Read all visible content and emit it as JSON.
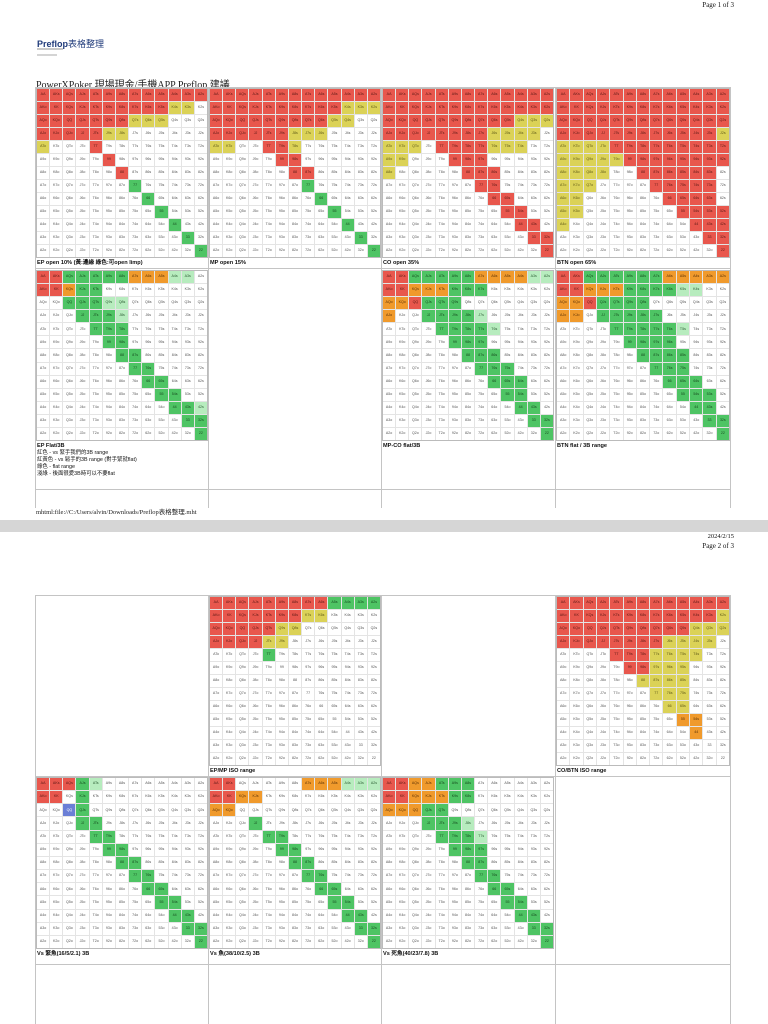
{
  "page1": {
    "pager": "Page 1 of 3",
    "brand": {
      "name": "Preflop",
      "name_suffix": "表格整理"
    },
    "heading": "PowerXPoker 現場現金/手機APP Preflop 建議",
    "captions": {
      "ep_open": "EP open 10% (黃:邊緣 綠色:可open limp)",
      "mp_open": "MP open 15%",
      "co_open": "CO open 35%",
      "btn_open": "BTN open 65%",
      "ep_flat": "EP Flat/3B",
      "mp_co_flat": "MP-CO flat/3B",
      "btn_flat": "BTN flat / 3B range"
    },
    "legend_lines": [
      "紅色 - vs 緊手我們的3B range",
      "紅黃色 - vs 鬆手的3B range (對手緊就flat)",
      "綠色 - flat range",
      "淺綠 - 後面很愛3B時可以不要flat"
    ],
    "footer_path": "mhtml:file://C:/Users/alvin/Downloads/Preflop表格整理.mht"
  },
  "page2": {
    "date": "2024/2/15",
    "pager": "Page 2 of 3",
    "captions": {
      "ep_mp_iso": "EP/MP ISO range",
      "co_btn_iso": "CO/BTN ISO range",
      "vs_tight": "Vs 緊魚(16/5/2.1)  3B",
      "vs_fish": "Vs 魚(38/10/2.5) 3B",
      "vs_loose": "Vs 死魚(40/23/7.8) 3B"
    }
  },
  "ranks": [
    "A",
    "K",
    "Q",
    "J",
    "T",
    "9",
    "8",
    "7",
    "6",
    "5",
    "4",
    "3",
    "2"
  ]
}
